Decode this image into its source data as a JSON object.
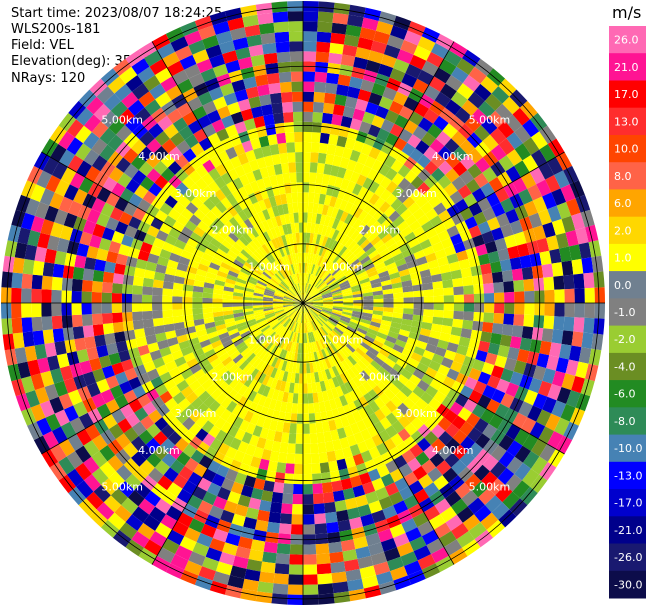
{
  "info": {
    "start_time": "Start time: 2023/08/07 18:24:25",
    "site": "WLS200s-181",
    "field": "Field: VEL",
    "elevation": "Elevation(deg): 35.30",
    "nrays": "NRays: 120"
  },
  "chart_data": {
    "type": "heatmap",
    "projection": "polar-ppi",
    "n_rays": 120,
    "n_gates": 30,
    "max_range_km": 5.0,
    "range_rings_km": [
      1.0,
      2.0,
      3.0,
      4.0,
      5.0
    ],
    "ring_labels": [
      "1.00km",
      "2.00km",
      "3.00km",
      "4.00km",
      "5.00km"
    ],
    "spokes_deg": [
      0,
      30,
      60,
      90,
      120,
      150,
      180,
      210,
      240,
      270,
      300,
      330
    ],
    "colorbar": {
      "unit": "m/s",
      "ticks": [
        "26.0",
        "21.0",
        "17.0",
        "13.0",
        "10.0",
        "8.0",
        "6.0",
        "2.0",
        "1.0",
        "0.0",
        "-1.0",
        "-2.0",
        "-4.0",
        "-6.0",
        "-8.0",
        "-10.0",
        "-13.0",
        "-17.0",
        "-21.0",
        "-26.0",
        "-30.0"
      ],
      "colors": [
        "#ff69b4",
        "#ff1493",
        "#ff0000",
        "#ff2d2d",
        "#ff4500",
        "#ff6347",
        "#ffa500",
        "#ffd700",
        "#ffff00",
        "#708090",
        "#808080",
        "#9acd32",
        "#6b8e23",
        "#228b22",
        "#2e8b57",
        "#4682b4",
        "#0000ff",
        "#0000cd",
        "#00008b",
        "#191970",
        "#0c0c4a"
      ]
    },
    "range_zones_km": [
      {
        "from": 0.0,
        "to": 1.0,
        "dominant": [
          "#ffff00",
          "#808080",
          "#9acd32"
        ]
      },
      {
        "from": 1.0,
        "to": 2.0,
        "dominant": [
          "#ffff00",
          "#808080",
          "#9acd32"
        ]
      },
      {
        "from": 2.0,
        "to": 3.0,
        "dominant": [
          "#ffff00",
          "#9acd32",
          "#808080"
        ]
      },
      {
        "from": 3.0,
        "to": 4.0,
        "dominant": [
          "noise"
        ]
      },
      {
        "from": 4.0,
        "to": 5.0,
        "dominant": [
          "noise"
        ]
      }
    ]
  }
}
